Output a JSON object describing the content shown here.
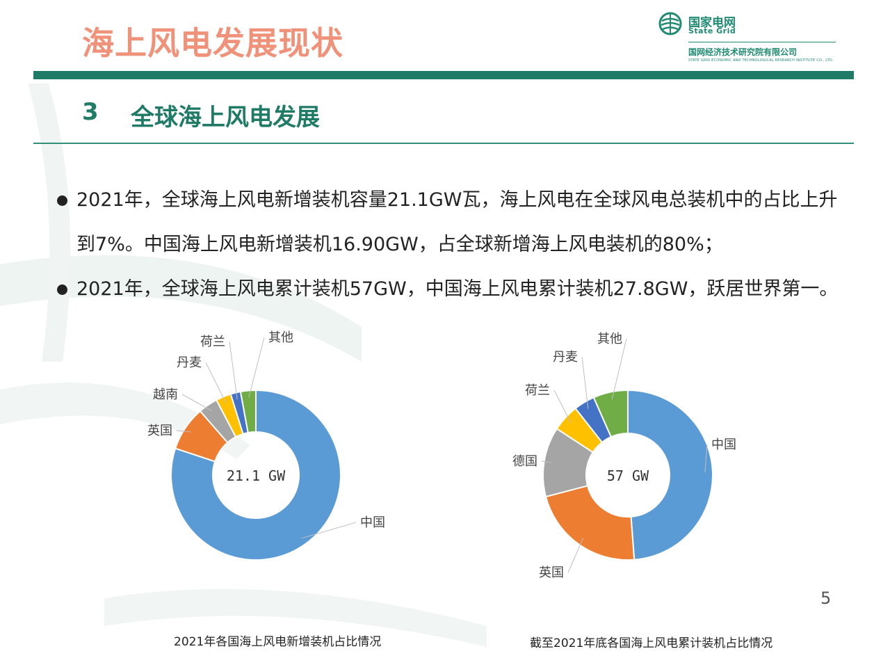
{
  "header": {
    "title": "海上风电发展现状",
    "logo_cn": "国家电网",
    "logo_en": "State Grid",
    "institute_cn": "国网经济技术研究院有限公司",
    "institute_en": "STATE GRID ECONOMIC AND TECHNOLOGICAL RESEARCH INSTITUTE CO., LTD."
  },
  "section": {
    "number": "3",
    "title": "全球海上风电发展"
  },
  "bullets": [
    "2021年，全球海上风电新增装机容量21.1GW瓦，海上风电在全球风电总装机中的占比上升到7%。中国海上风电新增装机16.90GW，占全球新增海上风电装机的80%；",
    "2021年，全球海上风电累计装机57GW，中国海上风电累计装机27.8GW，跃居世界第一。"
  ],
  "page_number": "5",
  "chart_data": [
    {
      "type": "pie",
      "donut": true,
      "title": "2021年各国海上风电新增装机占比情况",
      "center_label": "21.1 GW",
      "slices": [
        {
          "name": "中国",
          "value": 80.1,
          "color": "#5b9bd5"
        },
        {
          "name": "英国",
          "value": 8.5,
          "color": "#ed7d31"
        },
        {
          "name": "越南",
          "value": 3.7,
          "color": "#a5a5a5"
        },
        {
          "name": "丹麦",
          "value": 2.9,
          "color": "#ffc000"
        },
        {
          "name": "荷兰",
          "value": 1.9,
          "color": "#4472c4"
        },
        {
          "name": "其他",
          "value": 2.9,
          "color": "#70ad47"
        }
      ]
    },
    {
      "type": "pie",
      "donut": true,
      "title": "截至2021年底各国海上风电累计装机占比情况",
      "center_label": "57 GW",
      "slices": [
        {
          "name": "中国",
          "value": 48.8,
          "color": "#5b9bd5"
        },
        {
          "name": "英国",
          "value": 22.1,
          "color": "#ed7d31"
        },
        {
          "name": "德国",
          "value": 13.3,
          "color": "#a5a5a5"
        },
        {
          "name": "荷兰",
          "value": 5.2,
          "color": "#ffc000"
        },
        {
          "name": "丹麦",
          "value": 4.0,
          "color": "#4472c4"
        },
        {
          "name": "其他",
          "value": 6.6,
          "color": "#70ad47"
        }
      ]
    }
  ],
  "colors": {
    "accent": "#1f7a66",
    "title": "#f0927a"
  }
}
